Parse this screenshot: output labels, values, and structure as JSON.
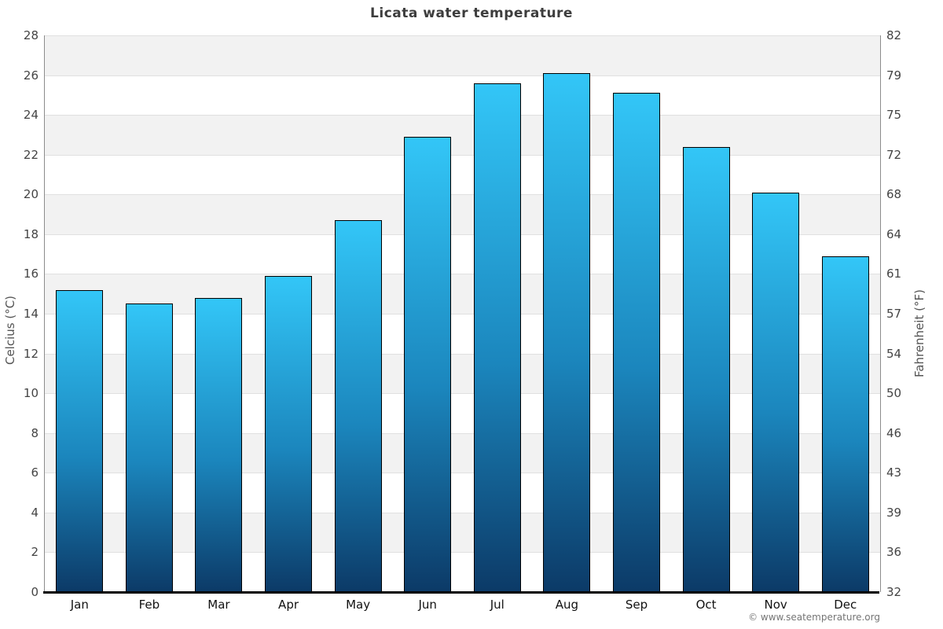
{
  "header": {
    "title": "Licata water temperature"
  },
  "chart_data": {
    "type": "bar",
    "title": "Licata water temperature",
    "categories": [
      "Jan",
      "Feb",
      "Mar",
      "Apr",
      "May",
      "Jun",
      "Jul",
      "Aug",
      "Sep",
      "Oct",
      "Nov",
      "Dec"
    ],
    "values": [
      15.2,
      14.5,
      14.8,
      15.9,
      18.7,
      22.9,
      25.6,
      26.1,
      25.1,
      22.4,
      20.1,
      16.9
    ],
    "unit": "°C",
    "ylabel_left": "Celcius (°C)",
    "ylabel_right": "Fahrenheit (°F)",
    "ylim": [
      0,
      28
    ],
    "yticks_celsius": [
      28,
      26,
      24,
      22,
      20,
      18,
      16,
      14,
      12,
      10,
      8,
      6,
      4,
      2,
      0
    ],
    "yticks_fahrenheit": [
      82,
      79,
      75,
      72,
      68,
      64,
      61,
      57,
      54,
      50,
      46,
      43,
      39,
      36,
      32
    ],
    "grid": "alternating-horizontal-bands",
    "legend": "none",
    "colors": {
      "bar_gradient_top": "#33c6f7",
      "bar_gradient_mid": "#1b86bd",
      "bar_gradient_bottom": "#0c3a67",
      "bar_border": "#000000",
      "band_gray": "#f2f2f2",
      "band_white": "#ffffff",
      "gridline": "#e0e0e0",
      "title_text": "#3d3d3d",
      "tick_text": "#444444",
      "month_text": "#111111"
    }
  },
  "footer": {
    "copyright": "© www.seatemperature.org"
  }
}
